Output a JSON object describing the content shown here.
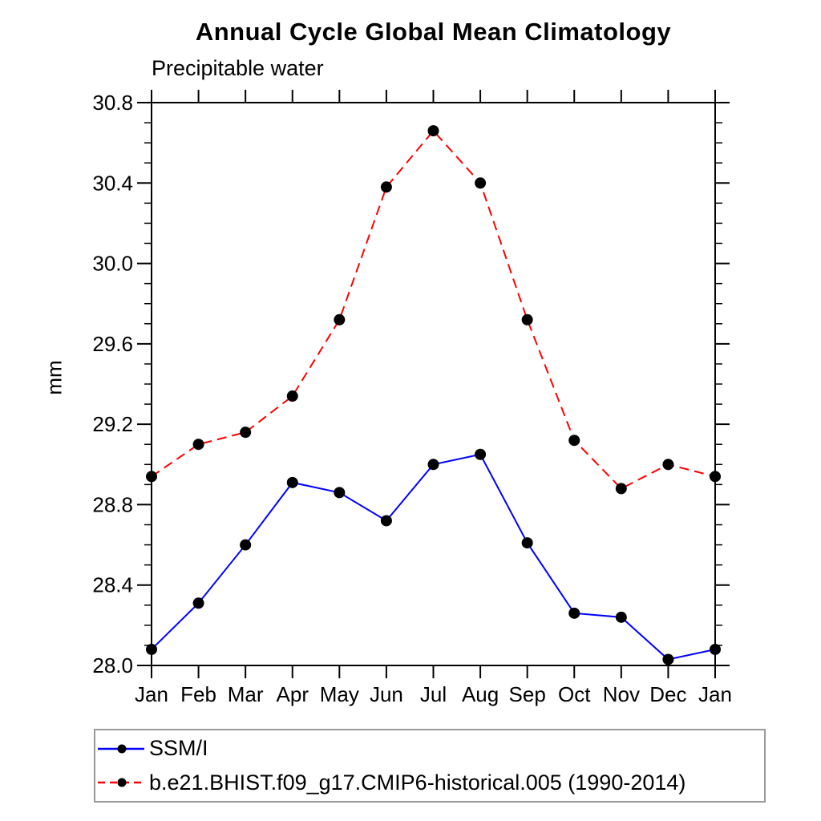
{
  "title": "Annual Cycle Global Mean Climatology",
  "subtitle": "Precipitable water",
  "chart_data": {
    "type": "line",
    "title": "Annual Cycle Global Mean Climatology",
    "subtitle": "Precipitable water",
    "ylabel": "mm",
    "x_categories": [
      "Jan",
      "Feb",
      "Mar",
      "Apr",
      "May",
      "Jun",
      "Jul",
      "Aug",
      "Sep",
      "Oct",
      "Nov",
      "Dec",
      "Jan"
    ],
    "ylim": [
      28.0,
      30.8
    ],
    "y_major_step": 0.4,
    "y_minor_step": 0.1,
    "grid": false,
    "legend_position": "below-bottom-left",
    "series": [
      {
        "name": "SSM/I",
        "line_color": "#0000FF",
        "line_style": "solid",
        "marker": "filled-circle",
        "marker_color": "#000000",
        "values": [
          28.08,
          28.31,
          28.6,
          28.91,
          28.86,
          28.72,
          29.0,
          29.05,
          28.61,
          28.26,
          28.24,
          28.03,
          28.08
        ]
      },
      {
        "name": "b.e21.BHIST.f09_g17.CMIP6-historical.005 (1990-2014)",
        "line_color": "#FF0000",
        "line_style": "dashed",
        "marker": "filled-circle",
        "marker_color": "#000000",
        "values": [
          28.94,
          29.1,
          29.16,
          29.34,
          29.72,
          30.38,
          30.66,
          30.4,
          29.72,
          29.12,
          28.88,
          29.0,
          28.94
        ]
      }
    ]
  }
}
